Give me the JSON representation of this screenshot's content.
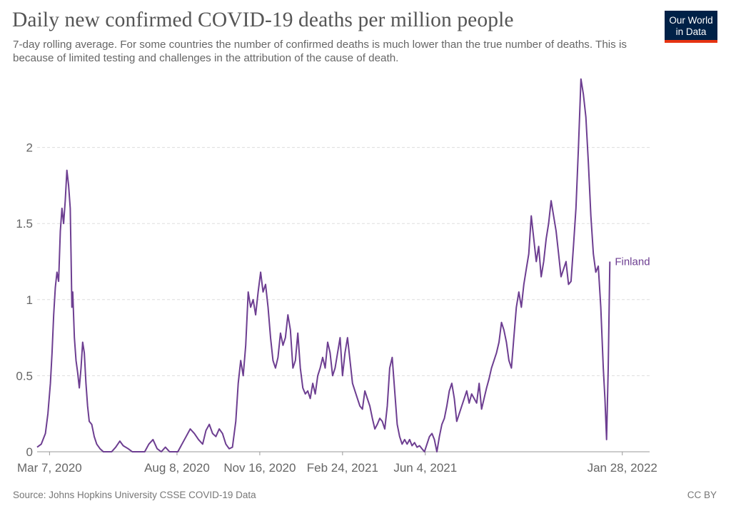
{
  "header": {
    "title": "Daily new confirmed COVID-19 deaths per million people",
    "subtitle": "7-day rolling average. For some countries the number of confirmed deaths is much lower than the true number of deaths. This is because of limited testing and challenges in the attribution of the cause of death."
  },
  "logo": {
    "line1": "Our World",
    "line2": "in Data"
  },
  "footer": {
    "source": "Source: Johns Hopkins University CSSE COVID-19 Data",
    "license": "CC BY"
  },
  "colors": {
    "series": "#6d3e91",
    "grid": "#dddddd",
    "axis": "#999999",
    "text": "#666666"
  },
  "chart_data": {
    "type": "line",
    "title": "Daily new confirmed COVID-19 deaths per million people",
    "xlabel": "",
    "ylabel": "",
    "ylim": [
      0,
      2.5
    ],
    "x_range_days": [
      0,
      740
    ],
    "y_ticks": [
      {
        "value": 0,
        "label": "0"
      },
      {
        "value": 0.5,
        "label": "0.5"
      },
      {
        "value": 1,
        "label": "1"
      },
      {
        "value": 1.5,
        "label": "1.5"
      },
      {
        "value": 2,
        "label": "2"
      }
    ],
    "x_ticks": [
      {
        "day": 15,
        "label": "Mar 7, 2020"
      },
      {
        "day": 169,
        "label": "Aug 8, 2020"
      },
      {
        "day": 269,
        "label": "Nov 16, 2020"
      },
      {
        "day": 369,
        "label": "Feb 24, 2021"
      },
      {
        "day": 469,
        "label": "Jun 4, 2021"
      },
      {
        "day": 707,
        "label": "Jan 28, 2022"
      }
    ],
    "series": [
      {
        "name": "Finland",
        "color": "#6d3e91",
        "points": [
          [
            0,
            0.03
          ],
          [
            5,
            0.05
          ],
          [
            10,
            0.12
          ],
          [
            13,
            0.25
          ],
          [
            16,
            0.45
          ],
          [
            18,
            0.65
          ],
          [
            20,
            0.9
          ],
          [
            22,
            1.08
          ],
          [
            24,
            1.18
          ],
          [
            26,
            1.12
          ],
          [
            28,
            1.45
          ],
          [
            30,
            1.6
          ],
          [
            32,
            1.5
          ],
          [
            34,
            1.65
          ],
          [
            36,
            1.85
          ],
          [
            38,
            1.75
          ],
          [
            40,
            1.6
          ],
          [
            41,
            1.3
          ],
          [
            42,
            0.95
          ],
          [
            43,
            1.05
          ],
          [
            45,
            0.75
          ],
          [
            47,
            0.6
          ],
          [
            49,
            0.52
          ],
          [
            51,
            0.42
          ],
          [
            53,
            0.55
          ],
          [
            55,
            0.72
          ],
          [
            57,
            0.65
          ],
          [
            59,
            0.45
          ],
          [
            61,
            0.3
          ],
          [
            63,
            0.2
          ],
          [
            66,
            0.18
          ],
          [
            69,
            0.1
          ],
          [
            72,
            0.05
          ],
          [
            76,
            0.02
          ],
          [
            80,
            0.0
          ],
          [
            90,
            0.0
          ],
          [
            95,
            0.03
          ],
          [
            100,
            0.07
          ],
          [
            104,
            0.04
          ],
          [
            110,
            0.02
          ],
          [
            115,
            0.0
          ],
          [
            130,
            0.0
          ],
          [
            135,
            0.05
          ],
          [
            140,
            0.08
          ],
          [
            145,
            0.02
          ],
          [
            150,
            0.0
          ],
          [
            155,
            0.03
          ],
          [
            160,
            0.0
          ],
          [
            170,
            0.0
          ],
          [
            175,
            0.05
          ],
          [
            180,
            0.1
          ],
          [
            185,
            0.15
          ],
          [
            190,
            0.12
          ],
          [
            195,
            0.08
          ],
          [
            200,
            0.05
          ],
          [
            204,
            0.14
          ],
          [
            208,
            0.18
          ],
          [
            212,
            0.12
          ],
          [
            216,
            0.1
          ],
          [
            220,
            0.15
          ],
          [
            224,
            0.12
          ],
          [
            228,
            0.05
          ],
          [
            232,
            0.02
          ],
          [
            236,
            0.03
          ],
          [
            240,
            0.2
          ],
          [
            243,
            0.45
          ],
          [
            246,
            0.6
          ],
          [
            249,
            0.5
          ],
          [
            252,
            0.7
          ],
          [
            255,
            1.05
          ],
          [
            258,
            0.95
          ],
          [
            261,
            1.0
          ],
          [
            264,
            0.9
          ],
          [
            267,
            1.05
          ],
          [
            270,
            1.18
          ],
          [
            273,
            1.05
          ],
          [
            276,
            1.1
          ],
          [
            279,
            0.95
          ],
          [
            282,
            0.75
          ],
          [
            285,
            0.6
          ],
          [
            288,
            0.55
          ],
          [
            291,
            0.62
          ],
          [
            294,
            0.78
          ],
          [
            297,
            0.7
          ],
          [
            300,
            0.75
          ],
          [
            303,
            0.9
          ],
          [
            306,
            0.8
          ],
          [
            309,
            0.55
          ],
          [
            312,
            0.6
          ],
          [
            315,
            0.78
          ],
          [
            318,
            0.55
          ],
          [
            321,
            0.42
          ],
          [
            324,
            0.38
          ],
          [
            327,
            0.4
          ],
          [
            330,
            0.35
          ],
          [
            333,
            0.45
          ],
          [
            336,
            0.38
          ],
          [
            339,
            0.5
          ],
          [
            342,
            0.55
          ],
          [
            345,
            0.62
          ],
          [
            348,
            0.55
          ],
          [
            351,
            0.72
          ],
          [
            354,
            0.65
          ],
          [
            357,
            0.5
          ],
          [
            360,
            0.55
          ],
          [
            363,
            0.65
          ],
          [
            366,
            0.75
          ],
          [
            369,
            0.5
          ],
          [
            372,
            0.65
          ],
          [
            375,
            0.75
          ],
          [
            378,
            0.6
          ],
          [
            381,
            0.45
          ],
          [
            384,
            0.4
          ],
          [
            387,
            0.35
          ],
          [
            390,
            0.3
          ],
          [
            393,
            0.28
          ],
          [
            396,
            0.4
          ],
          [
            399,
            0.35
          ],
          [
            402,
            0.3
          ],
          [
            405,
            0.22
          ],
          [
            408,
            0.15
          ],
          [
            411,
            0.18
          ],
          [
            414,
            0.22
          ],
          [
            417,
            0.2
          ],
          [
            420,
            0.15
          ],
          [
            423,
            0.3
          ],
          [
            426,
            0.55
          ],
          [
            429,
            0.62
          ],
          [
            432,
            0.4
          ],
          [
            435,
            0.18
          ],
          [
            438,
            0.1
          ],
          [
            441,
            0.05
          ],
          [
            444,
            0.08
          ],
          [
            447,
            0.05
          ],
          [
            450,
            0.08
          ],
          [
            453,
            0.04
          ],
          [
            456,
            0.06
          ],
          [
            459,
            0.03
          ],
          [
            462,
            0.04
          ],
          [
            465,
            0.02
          ],
          [
            468,
            0.0
          ],
          [
            471,
            0.05
          ],
          [
            474,
            0.1
          ],
          [
            477,
            0.12
          ],
          [
            480,
            0.08
          ],
          [
            483,
            0.0
          ],
          [
            486,
            0.1
          ],
          [
            489,
            0.18
          ],
          [
            492,
            0.22
          ],
          [
            495,
            0.3
          ],
          [
            498,
            0.4
          ],
          [
            501,
            0.45
          ],
          [
            504,
            0.35
          ],
          [
            507,
            0.2
          ],
          [
            510,
            0.25
          ],
          [
            513,
            0.3
          ],
          [
            516,
            0.35
          ],
          [
            519,
            0.4
          ],
          [
            522,
            0.32
          ],
          [
            525,
            0.38
          ],
          [
            528,
            0.35
          ],
          [
            531,
            0.32
          ],
          [
            534,
            0.45
          ],
          [
            537,
            0.28
          ],
          [
            540,
            0.35
          ],
          [
            543,
            0.42
          ],
          [
            546,
            0.48
          ],
          [
            549,
            0.55
          ],
          [
            552,
            0.6
          ],
          [
            555,
            0.65
          ],
          [
            558,
            0.72
          ],
          [
            561,
            0.85
          ],
          [
            564,
            0.8
          ],
          [
            567,
            0.72
          ],
          [
            570,
            0.6
          ],
          [
            573,
            0.55
          ],
          [
            576,
            0.75
          ],
          [
            579,
            0.95
          ],
          [
            582,
            1.05
          ],
          [
            585,
            0.95
          ],
          [
            588,
            1.1
          ],
          [
            591,
            1.2
          ],
          [
            594,
            1.3
          ],
          [
            597,
            1.55
          ],
          [
            600,
            1.4
          ],
          [
            603,
            1.25
          ],
          [
            606,
            1.35
          ],
          [
            609,
            1.15
          ],
          [
            612,
            1.25
          ],
          [
            615,
            1.4
          ],
          [
            618,
            1.5
          ],
          [
            621,
            1.65
          ],
          [
            624,
            1.55
          ],
          [
            627,
            1.45
          ],
          [
            630,
            1.3
          ],
          [
            633,
            1.15
          ],
          [
            636,
            1.2
          ],
          [
            639,
            1.25
          ],
          [
            642,
            1.1
          ],
          [
            645,
            1.12
          ],
          [
            648,
            1.35
          ],
          [
            651,
            1.6
          ],
          [
            654,
            2.0
          ],
          [
            657,
            2.45
          ],
          [
            660,
            2.35
          ],
          [
            663,
            2.2
          ],
          [
            666,
            1.9
          ],
          [
            669,
            1.55
          ],
          [
            672,
            1.3
          ],
          [
            675,
            1.18
          ],
          [
            678,
            1.22
          ],
          [
            681,
            0.95
          ],
          [
            684,
            0.55
          ],
          [
            686,
            0.35
          ],
          [
            688,
            0.08
          ],
          [
            690,
            0.55
          ],
          [
            692,
            1.25
          ]
        ]
      }
    ]
  }
}
